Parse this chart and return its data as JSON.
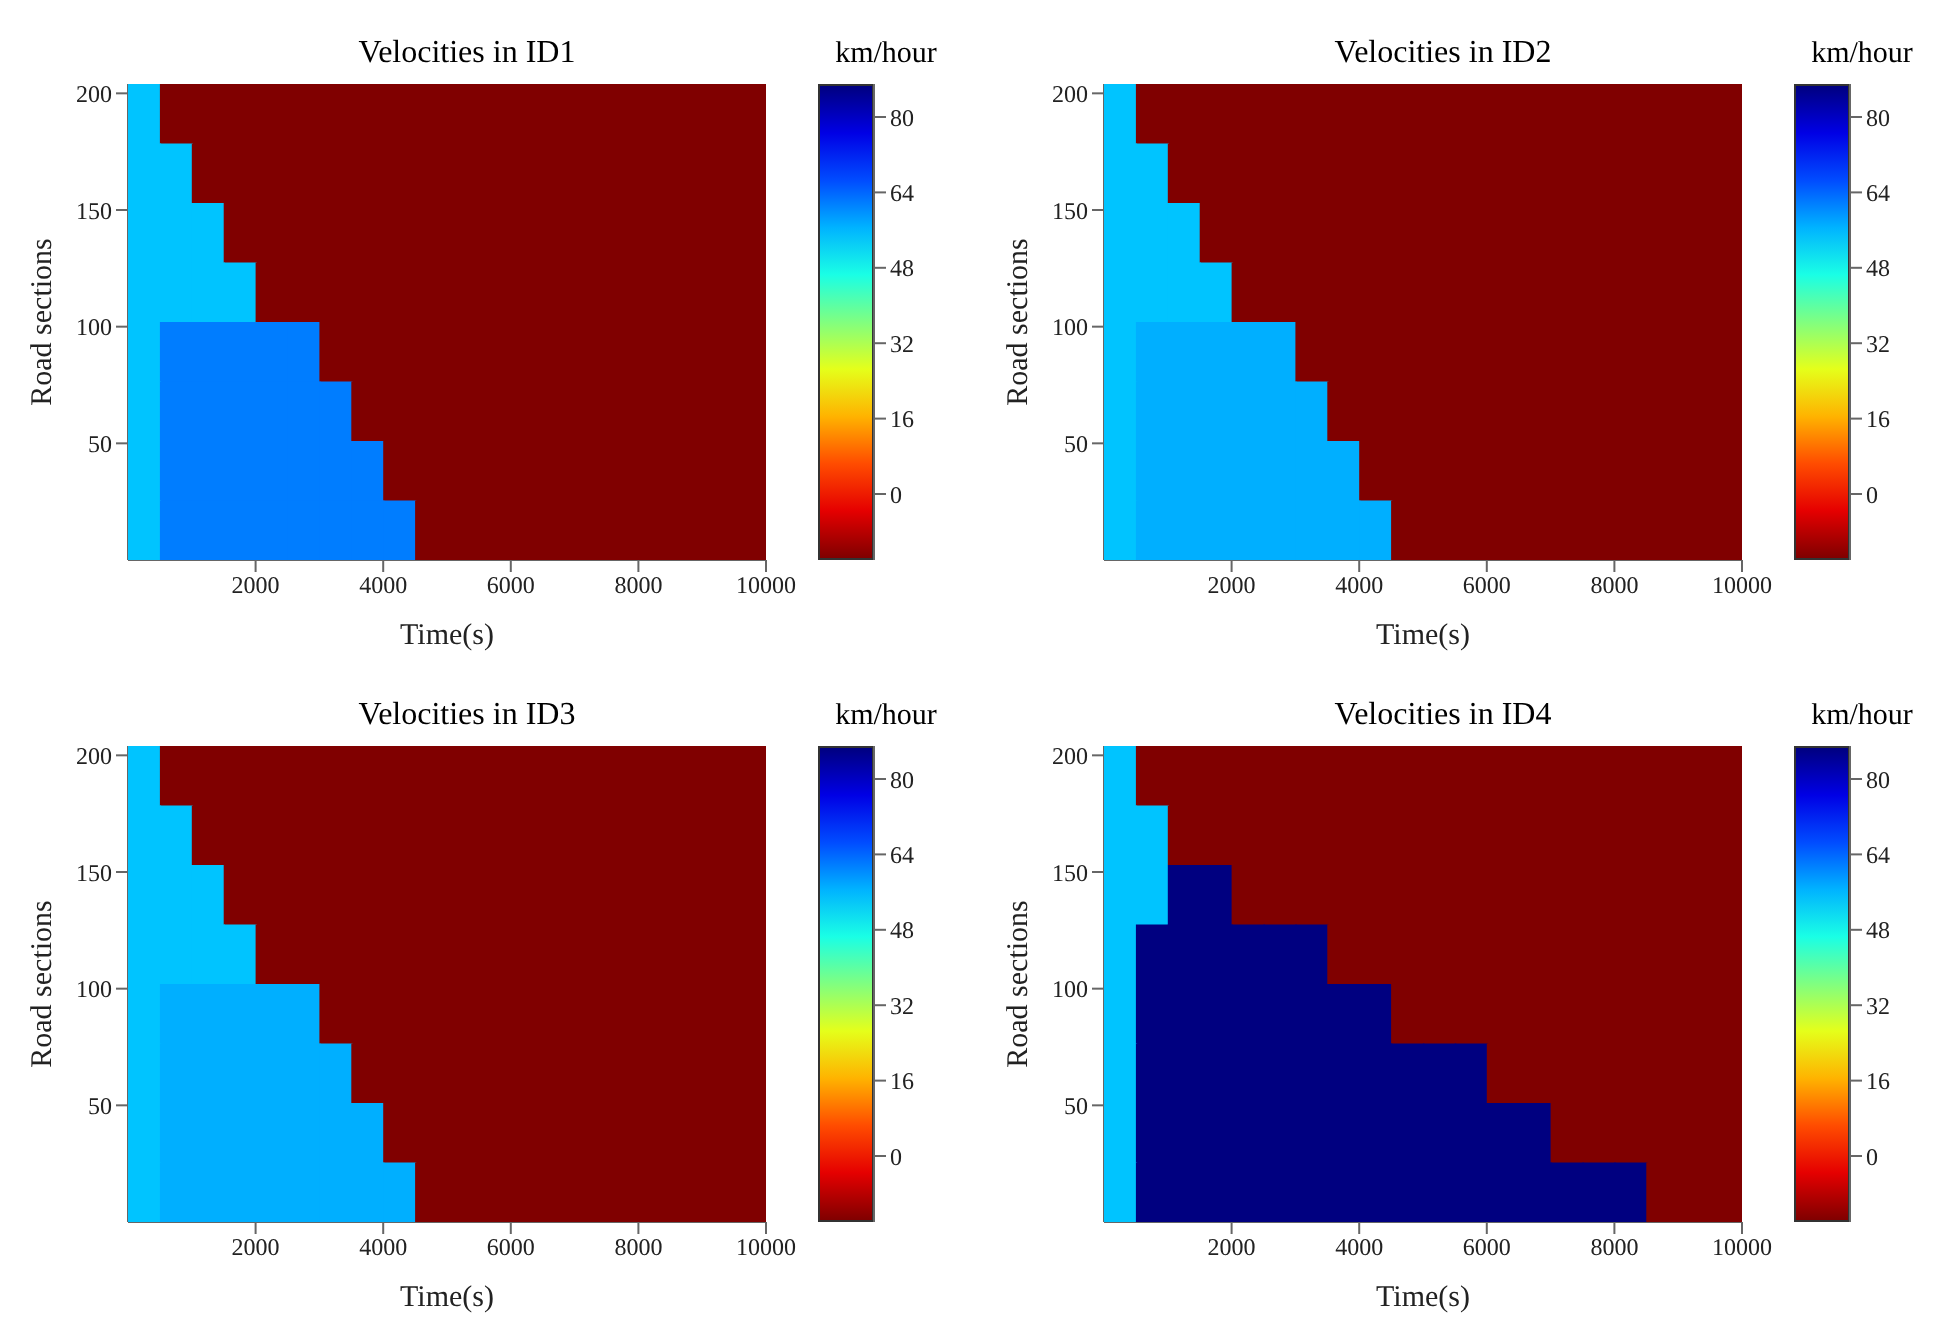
{
  "chart_data": [
    {
      "type": "heatmap",
      "title": "Velocities in ID1",
      "xlabel": "Time(s)",
      "ylabel": "Road sections",
      "clabel": "km/hour",
      "x": [
        250,
        750,
        1250,
        1750,
        2250,
        2750,
        3250,
        3750,
        4250,
        4750,
        5250,
        5750,
        6250,
        6750,
        7250,
        7750,
        8250,
        8750,
        9250,
        9750
      ],
      "xlim": [
        0,
        10000
      ],
      "xticks": [
        2000,
        4000,
        6000,
        8000,
        10000
      ],
      "ylim": [
        0,
        204
      ],
      "yticks": [
        50,
        100,
        150,
        200
      ],
      "cells": [
        [
          55,
          -14,
          -14,
          -14,
          -14,
          -14,
          -14,
          -14,
          -14,
          -14,
          -14,
          -14,
          -14,
          -14,
          -14,
          -14,
          -14,
          -14,
          -14,
          -14
        ],
        [
          55,
          55,
          -14,
          -14,
          -14,
          -14,
          -14,
          -14,
          -14,
          -14,
          -14,
          -14,
          -14,
          -14,
          -14,
          -14,
          -14,
          -14,
          -14,
          -14
        ],
        [
          55,
          55,
          55,
          -14,
          -14,
          -14,
          -14,
          -14,
          -14,
          -14,
          -14,
          -14,
          -14,
          -14,
          -14,
          -14,
          -14,
          -14,
          -14,
          -14
        ],
        [
          55,
          55,
          55,
          55,
          -14,
          -14,
          -14,
          -14,
          -14,
          -14,
          -14,
          -14,
          -14,
          -14,
          -14,
          -14,
          -14,
          -14,
          -14,
          -14
        ],
        [
          55,
          62,
          62,
          62,
          62,
          62,
          -14,
          -14,
          -14,
          -14,
          -14,
          -14,
          -14,
          -14,
          -14,
          -14,
          -14,
          -14,
          -14,
          -14
        ],
        [
          55,
          62,
          62,
          62,
          62,
          62,
          62,
          -14,
          -14,
          -14,
          -14,
          -14,
          -14,
          -14,
          -14,
          -14,
          -14,
          -14,
          -14,
          -14
        ],
        [
          55,
          62,
          62,
          62,
          62,
          62,
          62,
          62,
          -14,
          -14,
          -14,
          -14,
          -14,
          -14,
          -14,
          -14,
          -14,
          -14,
          -14,
          -14
        ],
        [
          55,
          62,
          62,
          62,
          62,
          62,
          62,
          62,
          62,
          -14,
          -14,
          -14,
          -14,
          -14,
          -14,
          -14,
          -14,
          -14,
          -14,
          -14
        ]
      ],
      "clim": [
        -14,
        87
      ],
      "cticks": [
        0,
        16,
        32,
        48,
        64,
        80
      ]
    },
    {
      "type": "heatmap",
      "title": "Velocities in ID2",
      "xlabel": "Time(s)",
      "ylabel": "Road sections",
      "clabel": "km/hour",
      "x": [
        250,
        750,
        1250,
        1750,
        2250,
        2750,
        3250,
        3750,
        4250,
        4750,
        5250,
        5750,
        6250,
        6750,
        7250,
        7750,
        8250,
        8750,
        9250,
        9750
      ],
      "xlim": [
        0,
        10000
      ],
      "xticks": [
        2000,
        4000,
        6000,
        8000,
        10000
      ],
      "ylim": [
        0,
        204
      ],
      "yticks": [
        50,
        100,
        150,
        200
      ],
      "cells": [
        [
          55,
          -14,
          -14,
          -14,
          -14,
          -14,
          -14,
          -14,
          -14,
          -14,
          -14,
          -14,
          -14,
          -14,
          -14,
          -14,
          -14,
          -14,
          -14,
          -14
        ],
        [
          55,
          55,
          -14,
          -14,
          -14,
          -14,
          -14,
          -14,
          -14,
          -14,
          -14,
          -14,
          -14,
          -14,
          -14,
          -14,
          -14,
          -14,
          -14,
          -14
        ],
        [
          55,
          55,
          55,
          -14,
          -14,
          -14,
          -14,
          -14,
          -14,
          -14,
          -14,
          -14,
          -14,
          -14,
          -14,
          -14,
          -14,
          -14,
          -14,
          -14
        ],
        [
          55,
          55,
          55,
          55,
          -14,
          -14,
          -14,
          -14,
          -14,
          -14,
          -14,
          -14,
          -14,
          -14,
          -14,
          -14,
          -14,
          -14,
          -14,
          -14
        ],
        [
          55,
          57,
          57,
          57,
          57,
          57,
          -14,
          -14,
          -14,
          -14,
          -14,
          -14,
          -14,
          -14,
          -14,
          -14,
          -14,
          -14,
          -14,
          -14
        ],
        [
          55,
          57,
          57,
          57,
          57,
          57,
          57,
          -14,
          -14,
          -14,
          -14,
          -14,
          -14,
          -14,
          -14,
          -14,
          -14,
          -14,
          -14,
          -14
        ],
        [
          55,
          57,
          57,
          57,
          57,
          57,
          57,
          57,
          -14,
          -14,
          -14,
          -14,
          -14,
          -14,
          -14,
          -14,
          -14,
          -14,
          -14,
          -14
        ],
        [
          55,
          57,
          57,
          57,
          57,
          57,
          57,
          57,
          57,
          -14,
          -14,
          -14,
          -14,
          -14,
          -14,
          -14,
          -14,
          -14,
          -14,
          -14
        ]
      ],
      "clim": [
        -14,
        87
      ],
      "cticks": [
        0,
        16,
        32,
        48,
        64,
        80
      ]
    },
    {
      "type": "heatmap",
      "title": "Velocities in ID3",
      "xlabel": "Time(s)",
      "ylabel": "Road sections",
      "clabel": "km/hour",
      "x": [
        250,
        750,
        1250,
        1750,
        2250,
        2750,
        3250,
        3750,
        4250,
        4750,
        5250,
        5750,
        6250,
        6750,
        7250,
        7750,
        8250,
        8750,
        9250,
        9750
      ],
      "xlim": [
        0,
        10000
      ],
      "xticks": [
        2000,
        4000,
        6000,
        8000,
        10000
      ],
      "ylim": [
        0,
        204
      ],
      "yticks": [
        50,
        100,
        150,
        200
      ],
      "cells": [
        [
          55,
          -14,
          -14,
          -14,
          -14,
          -14,
          -14,
          -14,
          -14,
          -14,
          -14,
          -14,
          -14,
          -14,
          -14,
          -14,
          -14,
          -14,
          -14,
          -14
        ],
        [
          55,
          55,
          -14,
          -14,
          -14,
          -14,
          -14,
          -14,
          -14,
          -14,
          -14,
          -14,
          -14,
          -14,
          -14,
          -14,
          -14,
          -14,
          -14,
          -14
        ],
        [
          55,
          55,
          55,
          -14,
          -14,
          -14,
          -14,
          -14,
          -14,
          -14,
          -14,
          -14,
          -14,
          -14,
          -14,
          -14,
          -14,
          -14,
          -14,
          -14
        ],
        [
          55,
          55,
          55,
          55,
          -14,
          -14,
          -14,
          -14,
          -14,
          -14,
          -14,
          -14,
          -14,
          -14,
          -14,
          -14,
          -14,
          -14,
          -14,
          -14
        ],
        [
          55,
          57,
          57,
          57,
          57,
          57,
          -14,
          -14,
          -14,
          -14,
          -14,
          -14,
          -14,
          -14,
          -14,
          -14,
          -14,
          -14,
          -14,
          -14
        ],
        [
          55,
          57,
          57,
          57,
          57,
          57,
          57,
          -14,
          -14,
          -14,
          -14,
          -14,
          -14,
          -14,
          -14,
          -14,
          -14,
          -14,
          -14,
          -14
        ],
        [
          55,
          57,
          57,
          57,
          57,
          57,
          57,
          57,
          -14,
          -14,
          -14,
          -14,
          -14,
          -14,
          -14,
          -14,
          -14,
          -14,
          -14,
          -14
        ],
        [
          55,
          57,
          57,
          57,
          57,
          57,
          57,
          57,
          57,
          -14,
          -14,
          -14,
          -14,
          -14,
          -14,
          -14,
          -14,
          -14,
          -14,
          -14
        ]
      ],
      "clim": [
        -14,
        87
      ],
      "cticks": [
        0,
        16,
        32,
        48,
        64,
        80
      ]
    },
    {
      "type": "heatmap",
      "title": "Velocities in ID4",
      "xlabel": "Time(s)",
      "ylabel": "Road sections",
      "clabel": "km/hour",
      "x": [
        250,
        750,
        1250,
        1750,
        2250,
        2750,
        3250,
        3750,
        4250,
        4750,
        5250,
        5750,
        6250,
        6750,
        7250,
        7750,
        8250,
        8750,
        9250,
        9750
      ],
      "xlim": [
        0,
        10000
      ],
      "xticks": [
        2000,
        4000,
        6000,
        8000,
        10000
      ],
      "ylim": [
        0,
        204
      ],
      "yticks": [
        50,
        100,
        150,
        200
      ],
      "cells": [
        [
          55,
          -14,
          -14,
          -14,
          -14,
          -14,
          -14,
          -14,
          -14,
          -14,
          -14,
          -14,
          -14,
          -14,
          -14,
          -14,
          -14,
          -14,
          -14,
          -14
        ],
        [
          55,
          55,
          -14,
          -14,
          -14,
          -14,
          -14,
          -14,
          -14,
          -14,
          -14,
          -14,
          -14,
          -14,
          -14,
          -14,
          -14,
          -14,
          -14,
          -14
        ],
        [
          55,
          55,
          87,
          87,
          -14,
          -14,
          -14,
          -14,
          -14,
          -14,
          -14,
          -14,
          -14,
          -14,
          -14,
          -14,
          -14,
          -14,
          -14,
          -14
        ],
        [
          55,
          87,
          87,
          87,
          87,
          87,
          87,
          -14,
          -14,
          -14,
          -14,
          -14,
          -14,
          -14,
          -14,
          -14,
          -14,
          -14,
          -14,
          -14
        ],
        [
          55,
          87,
          87,
          87,
          87,
          87,
          87,
          87,
          87,
          -14,
          -14,
          -14,
          -14,
          -14,
          -14,
          -14,
          -14,
          -14,
          -14,
          -14
        ],
        [
          55,
          87,
          87,
          87,
          87,
          87,
          87,
          87,
          87,
          87,
          87,
          87,
          -14,
          -14,
          -14,
          -14,
          -14,
          -14,
          -14,
          -14
        ],
        [
          55,
          87,
          87,
          87,
          87,
          87,
          87,
          87,
          87,
          87,
          87,
          87,
          87,
          87,
          -14,
          -14,
          -14,
          -14,
          -14,
          -14
        ],
        [
          55,
          87,
          87,
          87,
          87,
          87,
          87,
          87,
          87,
          87,
          87,
          87,
          87,
          87,
          87,
          87,
          87,
          -14,
          -14,
          -14
        ]
      ],
      "clim": [
        -14,
        87
      ],
      "cticks": [
        0,
        16,
        32,
        48,
        64,
        80
      ]
    }
  ]
}
